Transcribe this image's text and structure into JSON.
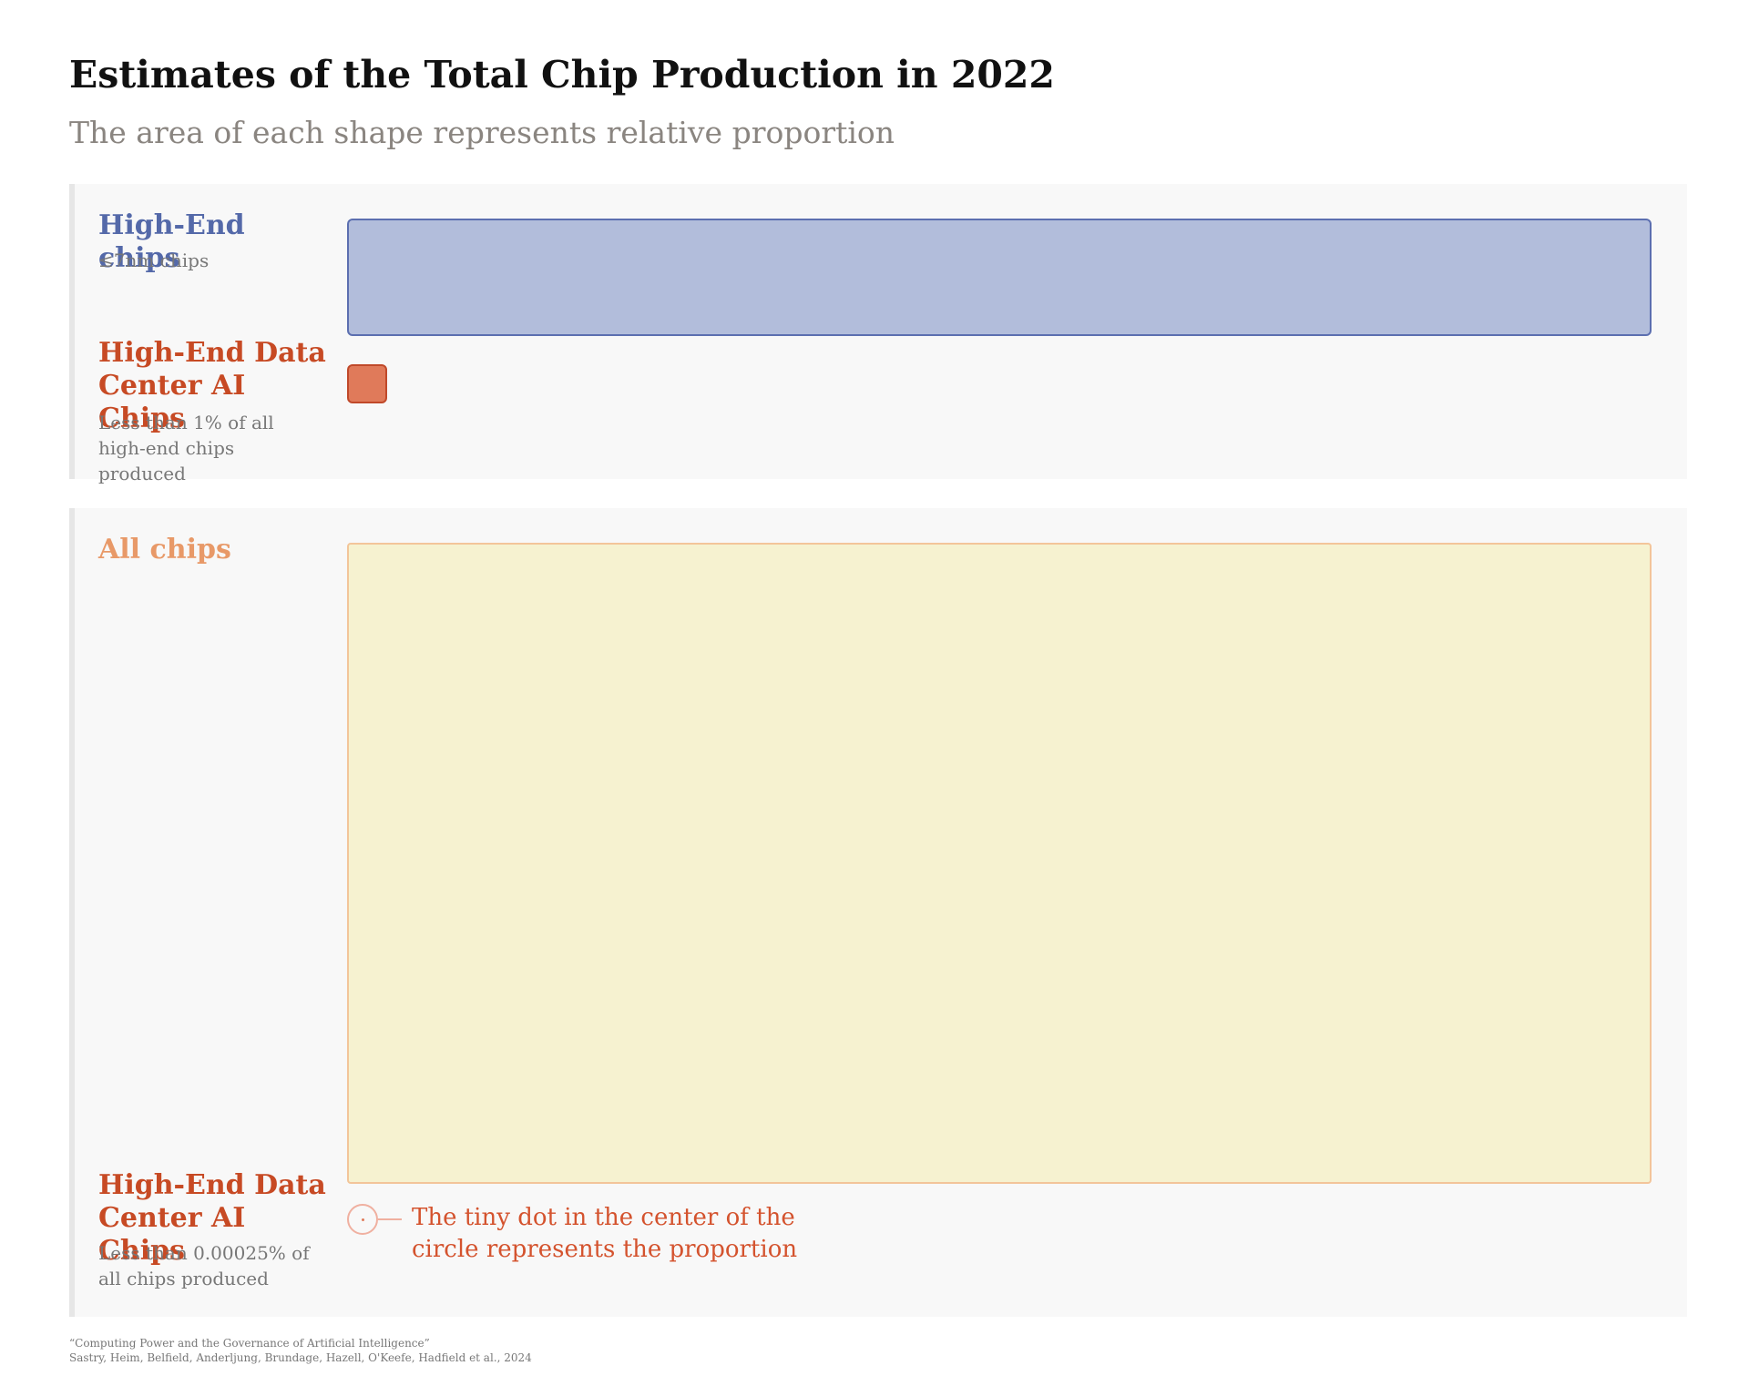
{
  "chart_data": {
    "type": "area-proportion",
    "title": "Estimates of the Total Chip Production in 2022",
    "subtitle": "The area of each shape represents relative proportion",
    "panels": [
      {
        "groups": [
          {
            "name": "High-End chips",
            "note": "≤7nm chips",
            "color": "#5469a9",
            "fill": "#b2bddb"
          },
          {
            "name": "High-End Data Center AI Chips",
            "note": "Less than 1% of all high-end chips produced",
            "color": "#c74a24",
            "fill": "#e07a5a",
            "proportion_percent": 1
          }
        ]
      },
      {
        "groups": [
          {
            "name": "All chips",
            "color": "#e89968",
            "fill": "#f6f2d0"
          },
          {
            "name": "High-End Data Center AI Chips",
            "note": "Less than 0.00025% of all chips produced",
            "color": "#c74a24",
            "proportion_percent": 0.00025
          }
        ],
        "annotation": "The tiny dot in the center of the circle represents the proportion"
      }
    ]
  },
  "footer": {
    "line1": "“Computing Power and the Governance of Artificial Intelligence”",
    "line2": "Sastry, Heim, Belfield, Anderljung, Brundage, Hazell, O'Keefe, Hadfield et al., 2024"
  }
}
